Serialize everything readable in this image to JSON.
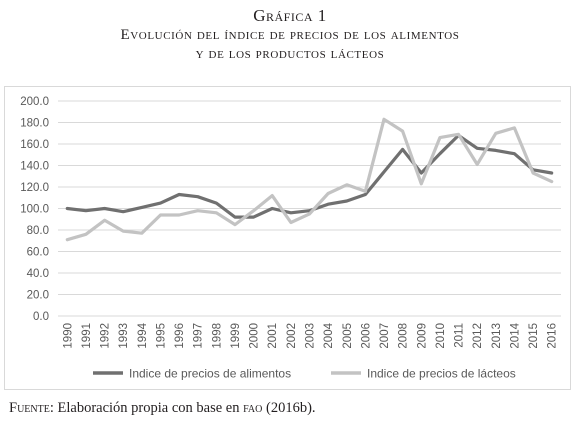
{
  "figure": {
    "number": "Gráfica 1",
    "title_line1": "Evolución del índice de precios de los alimentos",
    "title_line2": "y de los productos lácteos"
  },
  "source": {
    "lead": "Fuente:",
    "text_before": "Elaboración propia con base en",
    "org": "fao",
    "text_after": "(2016b)."
  },
  "colors": {
    "series_food": "#707070",
    "series_dairy": "#c3c3c3",
    "gridline": "#d9d9d9",
    "tick_text": "#595959"
  },
  "chart_data": {
    "type": "line",
    "title": "",
    "xlabel": "",
    "ylabel": "",
    "ylim": [
      0,
      200
    ],
    "ytick_step": 20,
    "yticks": [
      "0.0",
      "20.0",
      "40.0",
      "60.0",
      "80.0",
      "100.0",
      "120.0",
      "140.0",
      "160.0",
      "180.0",
      "200.0"
    ],
    "grid": true,
    "legend_position": "bottom",
    "categories": [
      "1990",
      "1991",
      "1992",
      "1993",
      "1994",
      "1995",
      "1996",
      "1997",
      "1998",
      "1999",
      "2000",
      "2001",
      "2002",
      "2003",
      "2004",
      "2005",
      "2006",
      "2007",
      "2008",
      "2009",
      "2010",
      "2011",
      "2012",
      "2013",
      "2014",
      "2015",
      "2016"
    ],
    "series": [
      {
        "name": "Indice de precios de alimentos",
        "color": "#707070",
        "values": [
          100,
          98,
          100,
          97,
          101,
          105,
          113,
          111,
          105,
          92,
          92,
          100,
          96,
          98,
          104,
          107,
          113,
          134,
          155,
          133,
          151,
          168,
          156,
          154,
          151,
          136,
          133
        ]
      },
      {
        "name": "Indice de precios de lácteos",
        "color": "#c3c3c3",
        "values": [
          71,
          76,
          89,
          79,
          77,
          94,
          94,
          98,
          96,
          85,
          98,
          112,
          87,
          95,
          114,
          122,
          116,
          183,
          172,
          123,
          166,
          169,
          141,
          170,
          175,
          133,
          125
        ]
      }
    ]
  }
}
